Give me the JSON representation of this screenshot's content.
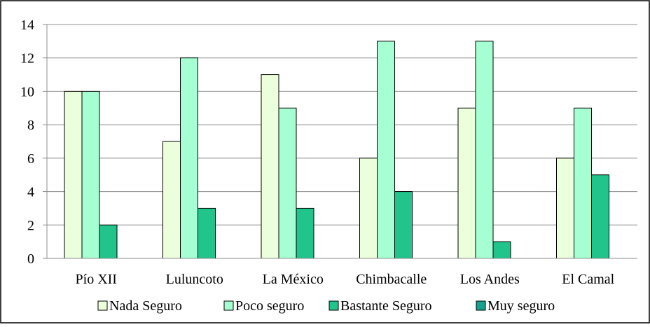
{
  "chart_data": {
    "type": "bar",
    "categories": [
      "Pío XII",
      "Luluncoto",
      "La México",
      "Chimbacalle",
      "Los Andes",
      "El Camal"
    ],
    "series": [
      {
        "name": "Nada Seguro",
        "values": [
          10,
          7,
          11,
          6,
          9,
          6
        ],
        "color": "#ECFFDD"
      },
      {
        "name": "Poco seguro",
        "values": [
          10,
          12,
          9,
          13,
          13,
          9
        ],
        "color": "#A6FFD2"
      },
      {
        "name": "Bastante Seguro",
        "values": [
          2,
          3,
          3,
          4,
          1,
          5
        ],
        "color": "#21C48A"
      },
      {
        "name": "Muy seguro",
        "values": [
          0,
          0,
          0,
          0,
          0,
          0
        ],
        "color": "#14A38E"
      }
    ],
    "ylim": [
      0,
      14
    ],
    "yticks": [
      0,
      2,
      4,
      6,
      8,
      10,
      12,
      14
    ],
    "grid": true,
    "legend": "bottom"
  }
}
